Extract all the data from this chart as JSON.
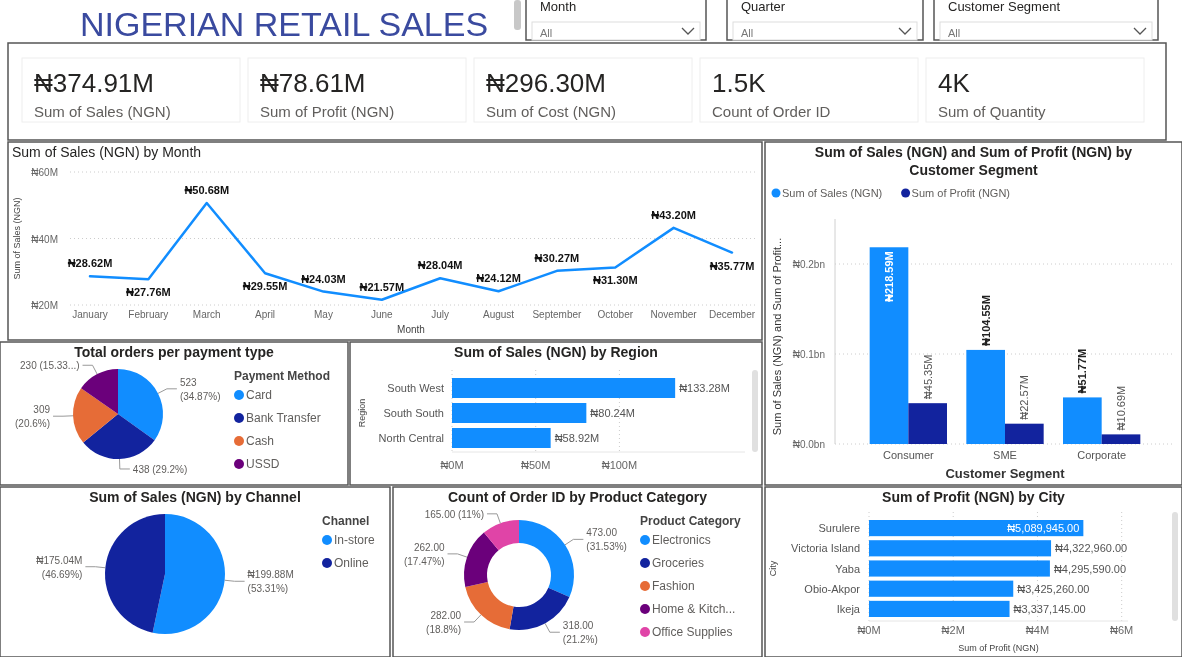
{
  "chart_data": [
    {
      "type": "other",
      "title": "NIGERIAN RETAIL SALES",
      "annotations": [
        "Month",
        "All",
        "Quarter",
        "All",
        "Customer Segment",
        "All"
      ]
    },
    {
      "type": "other",
      "annotations": [
        "₦374.91M",
        "Sum of Sales (NGN)",
        "₦78.61M",
        "Sum of Profit (NGN)",
        "₦296.30M",
        "Sum of Cost (NGN)",
        "1.5K",
        "Count of Order ID",
        "4K",
        "Sum of Quantity"
      ]
    },
    {
      "type": "line",
      "title": "Sum of Sales (NGN) by Month",
      "xlabel": "Month",
      "ylabel": "Sum of Sales (NGN)",
      "categories": [
        "January",
        "February",
        "March",
        "April",
        "May",
        "June",
        "July",
        "August",
        "September",
        "October",
        "November",
        "December"
      ],
      "values": [
        28.62,
        27.76,
        50.68,
        29.55,
        24.03,
        21.57,
        28.04,
        24.12,
        30.27,
        31.3,
        43.2,
        35.77
      ],
      "value_labels": [
        "₦28.62M",
        "₦27.76M",
        "₦50.68M",
        "₦29.55M",
        "₦24.03M",
        "₦21.57M",
        "₦28.04M",
        "₦24.12M",
        "₦30.27M",
        "₦31.30M",
        "₦43.20M",
        "₦35.77M"
      ],
      "color": "#118dff",
      "ylim": [
        20,
        60
      ],
      "yticks": [
        {
          "value": 20,
          "label": "₦20M"
        },
        {
          "value": 40,
          "label": "₦40M"
        },
        {
          "value": 60,
          "label": "₦60M"
        }
      ],
      "grid": "y"
    },
    {
      "type": "bar",
      "title": "Sum of Sales (NGN) and Sum of Profit (NGN) by Customer Segment",
      "xlabel": "Customer Segment",
      "ylabel": "Sum of Sales (NGN) and Sum of Profit...",
      "categories": [
        "Consumer",
        "SME",
        "Corporate"
      ],
      "series": [
        {
          "name": "Sum of Sales (NGN)",
          "color": "#118dff",
          "values": [
            218590000,
            104550000,
            51770000
          ],
          "value_labels": [
            "₦218.59M",
            "₦104.55M",
            "₦51.77M"
          ]
        },
        {
          "name": "Sum of Profit (NGN)",
          "color": "#12239e",
          "values": [
            45350000,
            22570000,
            10690000
          ],
          "value_labels": [
            "₦45.35M",
            "₦22.57M",
            "₦10.69M"
          ]
        }
      ],
      "ylim": [
        0,
        250000000
      ],
      "yticks": [
        {
          "value": 0,
          "label": "₦0.0bn"
        },
        {
          "value": 100000000,
          "label": "₦0.1bn"
        },
        {
          "value": 200000000,
          "label": "₦0.2bn"
        }
      ],
      "grid": "y",
      "legend": "top left"
    },
    {
      "type": "pie",
      "title": "Total orders per payment type",
      "legend_title": "Payment Method",
      "legend": "right",
      "categories": [
        "Card",
        "Bank Transfer",
        "Cash",
        "USSD"
      ],
      "values": [
        523,
        438,
        309,
        230
      ],
      "value_labels": [
        "523 (34.87%)",
        "438 (29.2%)",
        "309 (20.6%)",
        "230 (15.33...)"
      ],
      "colors": [
        "#118dff",
        "#12239e",
        "#e66c37",
        "#6b007b"
      ]
    },
    {
      "type": "bar",
      "orientation": "horizontal",
      "title": "Sum of Sales (NGN) by Region",
      "ylabel": "Region",
      "categories": [
        "South West",
        "South South",
        "North Central"
      ],
      "values": [
        133.28,
        80.24,
        58.92
      ],
      "value_labels": [
        "₦133.28M",
        "₦80.24M",
        "₦58.92M"
      ],
      "color": "#118dff",
      "xlim": [
        0,
        175
      ],
      "xticks": [
        {
          "value": 0,
          "label": "₦0M"
        },
        {
          "value": 50,
          "label": "₦50M"
        },
        {
          "value": 100,
          "label": "₦100M"
        }
      ],
      "grid": "x"
    },
    {
      "type": "pie",
      "title": "Sum of Sales (NGN) by Channel",
      "legend_title": "Channel",
      "legend": "right",
      "categories": [
        "In-store",
        "Online"
      ],
      "values": [
        53.31,
        46.69
      ],
      "value_labels": [
        "₦199.88M (53.31%)",
        "₦175.04M (46.69%)"
      ],
      "colors": [
        "#118dff",
        "#12239e"
      ]
    },
    {
      "type": "donut",
      "title": "Count of Order ID by Product Category",
      "legend_title": "Product Category",
      "legend": "right",
      "categories": [
        "Electronics",
        "Groceries",
        "Fashion",
        "Home & Kitch...",
        "Office Supplies"
      ],
      "values": [
        473,
        318,
        282,
        262,
        165
      ],
      "value_labels": [
        "473.00 (31.53%)",
        "318.00 (21.2%)",
        "282.00 (18.8%)",
        "262.00 (17.47%)",
        "165.00 (11%)"
      ],
      "colors": [
        "#118dff",
        "#12239e",
        "#e66c37",
        "#6b007b",
        "#e044a7"
      ]
    },
    {
      "type": "bar",
      "orientation": "horizontal",
      "title": "Sum of Profit (NGN) by City",
      "xlabel": "Sum of Profit (NGN)",
      "ylabel": "City",
      "categories": [
        "Surulere",
        "Victoria Island",
        "Yaba",
        "Obio-Akpor",
        "Ikeja"
      ],
      "values": [
        5089945,
        4322960,
        4295590,
        3425260,
        3337145
      ],
      "value_labels": [
        "₦5,089,945.00",
        "₦4,322,960.00",
        "₦4,295,590.00",
        "₦3,425,260.00",
        "₦3,337,145.00"
      ],
      "color": "#118dff",
      "xlim": [
        0,
        6150000
      ],
      "xticks": [
        {
          "value": 0,
          "label": "₦0M"
        },
        {
          "value": 2000000,
          "label": "₦2M"
        },
        {
          "value": 4000000,
          "label": "₦4M"
        },
        {
          "value": 6000000,
          "label": "₦6M"
        }
      ],
      "grid": "x"
    }
  ]
}
